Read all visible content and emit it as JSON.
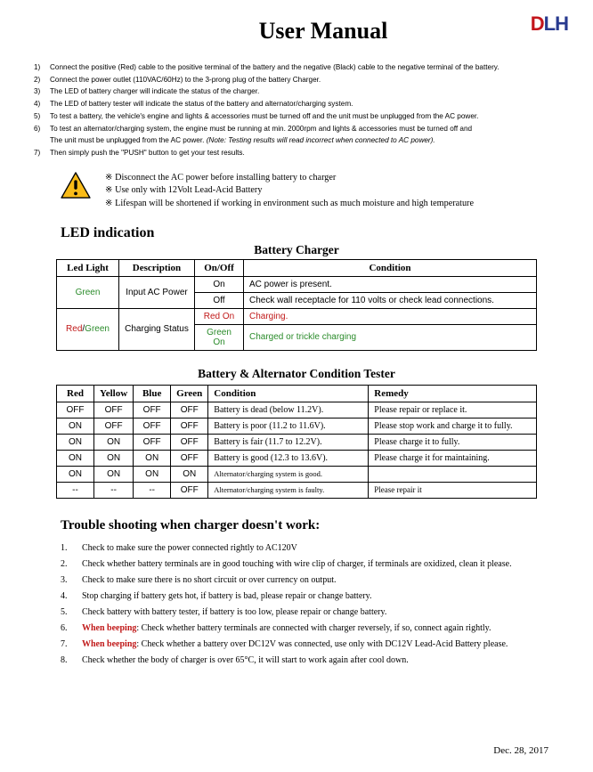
{
  "title": "User Manual",
  "logo": {
    "d": "D",
    "l": "L",
    "h": "H"
  },
  "steps": [
    {
      "n": "1)",
      "t": "Connect the positive (Red) cable to the positive terminal of the battery and the negative (Black) cable to the negative terminal of the battery."
    },
    {
      "n": "2)",
      "t": "Connect the power outlet (110VAC/60Hz) to the 3-prong plug of the battery Charger."
    },
    {
      "n": "3)",
      "t": "The LED of battery charger will indicate the status of the charger."
    },
    {
      "n": "4)",
      "t": "The LED of battery tester will indicate the status of the battery and alternator/charging system."
    },
    {
      "n": "5)",
      "t": "To test a battery, the vehicle's engine and lights & accessories must be turned off and the unit must be unplugged from the AC power."
    },
    {
      "n": "6)",
      "t": "To test an alternator/charging system, the engine must be running at min. 2000rpm and lights & accessories must be turned off and"
    },
    {
      "n": "",
      "t": "The unit must be unplugged from the AC power.    ",
      "note": "(Note: Testing results will read incorrect when connected to AC power)."
    },
    {
      "n": "7)",
      "t": "Then simply push the \"PUSH\" button to get your test results."
    }
  ],
  "warnings": [
    "Disconnect the AC power before installing battery to charger",
    "Use only with 12Volt Lead-Acid Battery",
    "Lifespan will be shortened if working in environment such as much moisture and high temperature"
  ],
  "led_heading": "LED indication",
  "table1": {
    "title": "Battery Charger",
    "headers": [
      "Led Light",
      "Description",
      "On/Off",
      "Condition"
    ],
    "rows": [
      {
        "led": "Green",
        "led_color": "green",
        "desc": "Input AC Power",
        "onoff": "On",
        "cond": "AC power is present.",
        "cond_color": ""
      },
      {
        "led": "",
        "desc": "",
        "onoff": "Off",
        "cond": "Check wall receptacle for 110 volts or check lead connections.",
        "cond_color": ""
      },
      {
        "led": "Red/Green",
        "led_color": "mixed",
        "desc": "Charging Status",
        "onoff": "Red On",
        "onoff_color": "red",
        "cond": "Charging.",
        "cond_color": "red"
      },
      {
        "led": "",
        "desc": "",
        "onoff": "Green On",
        "onoff_color": "green",
        "cond": "Charged or trickle charging",
        "cond_color": "green"
      }
    ]
  },
  "table2": {
    "title": "Battery & Alternator Condition Tester",
    "headers": [
      "Red",
      "Yellow",
      "Blue",
      "Green",
      "Condition",
      "Remedy"
    ],
    "rows": [
      [
        "OFF",
        "OFF",
        "OFF",
        "OFF",
        "Battery is dead (below 11.2V).",
        "Please repair or replace it."
      ],
      [
        "ON",
        "OFF",
        "OFF",
        "OFF",
        "Battery is poor (11.2 to 11.6V).",
        "Please stop work and charge it to fully."
      ],
      [
        "ON",
        "ON",
        "OFF",
        "OFF",
        "Battery is fair (11.7 to 12.2V).",
        "Please charge it to fully."
      ],
      [
        "ON",
        "ON",
        "ON",
        "OFF",
        "Battery is good (12.3 to 13.6V).",
        "Please charge it for maintaining."
      ],
      [
        "ON",
        "ON",
        "ON",
        "ON",
        "Alternator/charging system is good.",
        ""
      ],
      [
        "--",
        "--",
        "--",
        "OFF",
        "Alternator/charging system is faulty.",
        "Please repair it"
      ]
    ]
  },
  "trouble_heading": "Trouble shooting when charger doesn't work:",
  "trouble": [
    {
      "n": "1.",
      "pre": "",
      "t": "Check to make sure the power connected rightly to AC120V"
    },
    {
      "n": "2.",
      "pre": "",
      "t": "Check whether battery terminals are in good touching with wire clip of charger, if terminals are oxidized, clean it please."
    },
    {
      "n": "3.",
      "pre": "",
      "t": "Check to make sure there is no short circuit or over currency on output."
    },
    {
      "n": "4.",
      "pre": "",
      "t": "Stop charging if battery gets hot, if battery is bad, please repair or change battery."
    },
    {
      "n": "5.",
      "pre": "",
      "t": "Check battery with battery tester, if battery is too low, please repair or change battery."
    },
    {
      "n": "6.",
      "pre": "When beeping",
      "t": ": Check whether battery terminals are connected with charger reversely, if so, connect again rightly."
    },
    {
      "n": "7.",
      "pre": "When beeping",
      "t": ": Check whether a battery over DC12V was connected, use only with DC12V Lead-Acid Battery please."
    },
    {
      "n": "8.",
      "pre": "",
      "t": "Check whether the body of charger is over 65°C, it will start to work again after cool down."
    }
  ],
  "footer_date": "Dec. 28, 2017",
  "colors": {
    "red": "#c01818",
    "green": "#2a8b2a",
    "logo_red": "#c4161c",
    "logo_blue": "#283a8f",
    "warn_yellow": "#f9bb18",
    "warn_border": "#000000"
  }
}
